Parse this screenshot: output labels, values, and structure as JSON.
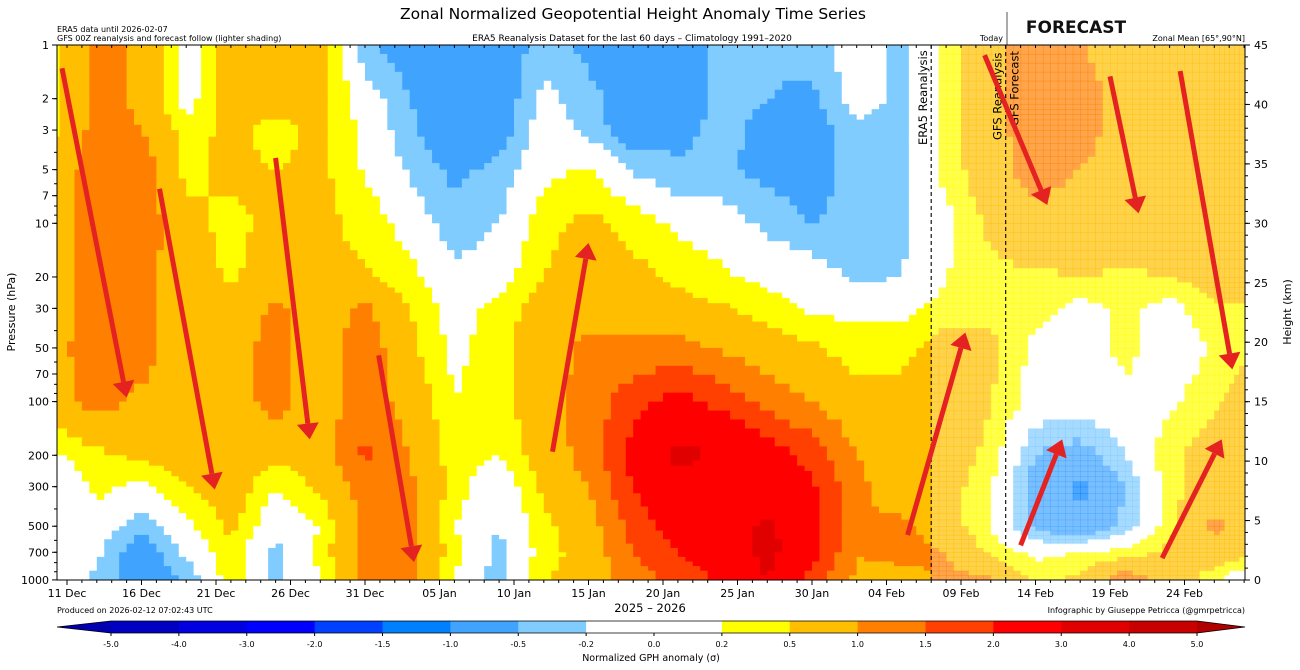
{
  "header": {
    "title": "Zonal Normalized Geopotential Height Anomaly Time Series",
    "note_line1": "ERA5 data until 2026-02-07",
    "note_line2": "GFS 00Z reanalysis and forecast follow (lighter shading)",
    "subtitle": "ERA5 Reanalysis Dataset for the last 60 days – Climatology 1991–2020",
    "today_label": "Today",
    "forecast_label": "FORECAST",
    "zonal_mean": "Zonal Mean [65°,90°N]"
  },
  "footer": {
    "produced": "Produced on 2026-02-12 07:02:43 UTC",
    "credit": "Infographic by Giuseppe Petricca (@gmrpetricca)"
  },
  "chart_data": {
    "type": "heatmap",
    "subtype": "filled-contour",
    "xlabel": "2025 – 2026",
    "ylabel": "Pressure (hPa)",
    "ylabel_right": "Height (km)",
    "yscale": "log",
    "ylim": [
      1000,
      1
    ],
    "ylim_right": [
      0,
      45
    ],
    "xlim": [
      "2025-12-10",
      "2026-02-28"
    ],
    "x_ticks": [
      "11 Dec",
      "16 Dec",
      "21 Dec",
      "26 Dec",
      "31 Dec",
      "05 Jan",
      "10 Jan",
      "15 Jan",
      "20 Jan",
      "25 Jan",
      "30 Jan",
      "04 Feb",
      "09 Feb",
      "14 Feb",
      "19 Feb",
      "24 Feb"
    ],
    "x_tick_dates": [
      "2025-12-11",
      "2025-12-16",
      "2025-12-21",
      "2025-12-26",
      "2025-12-31",
      "2026-01-05",
      "2026-01-10",
      "2026-01-15",
      "2026-01-20",
      "2026-01-25",
      "2026-01-30",
      "2026-02-04",
      "2026-02-09",
      "2026-02-14",
      "2026-02-19",
      "2026-02-24"
    ],
    "y_ticks": [
      1,
      2,
      3,
      5,
      7,
      10,
      20,
      30,
      50,
      70,
      100,
      200,
      300,
      500,
      700,
      1000
    ],
    "y_ticks_right": [
      0,
      5,
      10,
      15,
      20,
      25,
      30,
      35,
      40,
      45
    ],
    "vlines": [
      {
        "date": "2026-02-07",
        "label": "ERA5 Reanalysis",
        "style": "dashed"
      },
      {
        "date": "2026-02-12",
        "label": "GFS Reanalysis",
        "label2": "GFS Forecast",
        "style": "dashed"
      }
    ],
    "forecast_start": "2026-02-07",
    "colorbar": {
      "label": "Normalized GPH anomaly (σ)",
      "ticks": [
        "-5.0",
        "-4.0",
        "-3.0",
        "-2.0",
        "-1.5",
        "-1.0",
        "-0.5",
        "-0.2",
        "0.0",
        "0.2",
        "0.5",
        "1.0",
        "1.5",
        "2.0",
        "3.0",
        "4.0",
        "5.0"
      ],
      "bounds": [
        -5,
        -4,
        -3,
        -2,
        -1.5,
        -1,
        -0.5,
        -0.2,
        0.2,
        0.5,
        1,
        1.5,
        2,
        3,
        4,
        5
      ],
      "colors": [
        "#0000c0",
        "#0000e0",
        "#0000ff",
        "#0040ff",
        "#0080ff",
        "#40a4ff",
        "#80ccff",
        "#ffffff",
        "#ffff00",
        "#ffbf00",
        "#ff8000",
        "#ff4000",
        "#ff0000",
        "#e00000",
        "#c80000"
      ],
      "under_color": "#0000b0",
      "over_color": "#b00000"
    },
    "grid_dates": [
      "2025-12-10",
      "2025-12-13",
      "2025-12-16",
      "2025-12-19",
      "2025-12-22",
      "2025-12-25",
      "2025-12-28",
      "2025-12-31",
      "2026-01-03",
      "2026-01-06",
      "2026-01-09",
      "2026-01-12",
      "2026-01-15",
      "2026-01-18",
      "2026-01-21",
      "2026-01-24",
      "2026-01-27",
      "2026-01-30",
      "2026-02-02",
      "2026-02-05",
      "2026-02-08",
      "2026-02-11",
      "2026-02-14",
      "2026-02-17",
      "2026-02-20",
      "2026-02-23",
      "2026-02-26",
      "2026-02-28"
    ],
    "grid_levels": [
      1,
      2,
      3,
      5,
      10,
      20,
      30,
      50,
      100,
      200,
      300,
      500,
      700,
      1000
    ],
    "values": [
      [
        0.3,
        1.2,
        0.9,
        0,
        0.75,
        0.75,
        0.75,
        -0.4,
        -0.75,
        -0.9,
        -0.75,
        -0.35,
        -0.6,
        -0.75,
        -0.75,
        -0.4,
        -0.4,
        -0.35,
        0,
        -0.3,
        0.3,
        0.8,
        1.3,
        1.0,
        0.75,
        0.75,
        0.75,
        0.75
      ],
      [
        0.3,
        1.2,
        0.9,
        0,
        0.75,
        0.75,
        0.6,
        0,
        -0.5,
        -0.9,
        -0.8,
        -0.1,
        -0.4,
        -0.75,
        -0.75,
        -0.4,
        -0.5,
        -0.6,
        0,
        -0.3,
        0.3,
        0.8,
        1.3,
        1.3,
        0.75,
        0.75,
        0.75,
        0.8
      ],
      [
        0.4,
        1.2,
        1.0,
        0.35,
        0.6,
        0.35,
        0.6,
        0.1,
        -0.4,
        -0.9,
        -0.7,
        0,
        -0.3,
        -0.75,
        -0.6,
        -0.4,
        -0.6,
        -0.7,
        -0.3,
        -0.35,
        0.3,
        0.8,
        1.3,
        1.2,
        0.75,
        0.75,
        0.7,
        0.9
      ],
      [
        0.6,
        1.3,
        1.3,
        0.4,
        0.6,
        0.5,
        0.6,
        0.15,
        -0.25,
        -0.6,
        -0.4,
        0.1,
        0.25,
        -0.25,
        -0.45,
        -0.45,
        -0.6,
        -0.7,
        -0.35,
        -0.35,
        0.3,
        0.8,
        1.2,
        1.0,
        0.75,
        0.75,
        0.75,
        0.7
      ],
      [
        0.7,
        1.3,
        1.3,
        0.6,
        0.4,
        0.6,
        0.6,
        0.4,
        0.05,
        -0.4,
        -0.2,
        0.4,
        0.6,
        0.4,
        0.1,
        0,
        -0.3,
        -0.5,
        -0.4,
        -0.3,
        0.1,
        0.6,
        0.8,
        0.8,
        0.75,
        0.75,
        0.75,
        0.75
      ],
      [
        0.8,
        1.2,
        1.2,
        0.7,
        0.45,
        0.7,
        0.5,
        0.55,
        0.3,
        -0.1,
        0.05,
        0.5,
        0.7,
        0.6,
        0.45,
        0.25,
        0.1,
        0,
        -0.3,
        -0.2,
        0.2,
        0.4,
        0.45,
        0.5,
        0.45,
        0.5,
        0.7,
        0.75
      ],
      [
        0.8,
        1.2,
        1.2,
        0.7,
        0.6,
        1.1,
        0.7,
        1.1,
        0.5,
        0.05,
        0.3,
        0.7,
        0.8,
        0.7,
        0.6,
        0.55,
        0.35,
        0.15,
        0.1,
        0.1,
        0.3,
        0.4,
        0.35,
        0.05,
        0.3,
        0.05,
        0.45,
        0.45
      ],
      [
        0.8,
        1.3,
        1.2,
        0.7,
        0.75,
        1.2,
        0.7,
        1.3,
        0.6,
        0.1,
        0.4,
        0.8,
        1.1,
        1.1,
        1.2,
        0.9,
        0.7,
        0.55,
        0.35,
        0.35,
        0.7,
        0.6,
        0.1,
        0,
        0.3,
        0,
        0.2,
        0.4
      ],
      [
        0.75,
        1.2,
        0.9,
        0.75,
        0.75,
        1.2,
        0.7,
        1.3,
        0.8,
        0.2,
        0.35,
        0.8,
        1.2,
        1.8,
        2.2,
        1.8,
        1.3,
        1.0,
        0.6,
        0.7,
        0.8,
        0.5,
        0.05,
        0,
        0.1,
        0.1,
        0.45,
        0.7
      ],
      [
        0.15,
        0.4,
        0.6,
        0.75,
        0.8,
        0.6,
        0.75,
        1.6,
        1.0,
        0.3,
        0.2,
        0.7,
        1.2,
        2.2,
        3.3,
        2.8,
        2.3,
        1.8,
        1.0,
        0.75,
        0.75,
        0.4,
        -0.5,
        -0.7,
        -0.2,
        0.4,
        0.75,
        0.75
      ],
      [
        -0.2,
        0.3,
        0.1,
        0.5,
        0.75,
        0.2,
        0.6,
        1.2,
        1.1,
        0.35,
        -0.1,
        0.6,
        1.0,
        2.0,
        2.6,
        2.5,
        2.5,
        2.1,
        1.1,
        0.75,
        0.7,
        0.2,
        -0.7,
        -1.1,
        -0.5,
        0.35,
        0.75,
        0.9
      ],
      [
        -0.1,
        0,
        -0.4,
        0.1,
        0.6,
        -0.1,
        0.2,
        1.1,
        1.1,
        0.2,
        -0.2,
        0.4,
        0.75,
        1.7,
        2.3,
        2.5,
        3.2,
        2.3,
        1.0,
        1.1,
        0.7,
        0.2,
        -0.6,
        -0.9,
        -0.4,
        0.4,
        1.1,
        0.8
      ],
      [
        0.1,
        -0.1,
        -0.8,
        -0.1,
        0.4,
        -0.3,
        0.3,
        1.2,
        1.2,
        0.3,
        -0.3,
        0.35,
        0.7,
        1.5,
        2.0,
        2.4,
        3.3,
        2.2,
        1.0,
        1.2,
        1.0,
        0.4,
        0.1,
        0.2,
        0.3,
        0.6,
        0.8,
        0.7
      ],
      [
        0.2,
        -0.3,
        -0.8,
        -0.5,
        0.4,
        -0.3,
        0.2,
        1.1,
        1.1,
        0.2,
        -0.4,
        0.5,
        0.6,
        1.3,
        1.6,
        2.1,
        3.0,
        1.8,
        0.9,
        0.75,
        1.1,
        1.1,
        0.4,
        0.6,
        1.3,
        0.75,
        0.3,
        -0.2
      ]
    ],
    "annotations_arrows": [
      {
        "from": [
          "2025-12-10T16",
          1.35
        ],
        "to": [
          "2025-12-15",
          95
        ]
      },
      {
        "from": [
          "2025-12-17T05",
          6.4
        ],
        "to": [
          "2025-12-20T22",
          311
        ]
      },
      {
        "from": [
          "2025-12-25",
          4.3
        ],
        "to": [
          "2025-12-27T07",
          163
        ]
      },
      {
        "from": [
          "2025-12-31T22",
          55
        ],
        "to": [
          "2026-01-03T07",
          795
        ]
      },
      {
        "from": [
          "2026-01-12T14",
          191
        ],
        "to": [
          "2026-01-15",
          12.9
        ]
      },
      {
        "from": [
          "2026-02-05T10",
          560
        ],
        "to": [
          "2026-02-09T07",
          41
        ]
      },
      {
        "from": [
          "2026-02-10T14",
          1.14
        ],
        "to": [
          "2026-02-14T19",
          7.9
        ]
      },
      {
        "from": [
          "2026-02-19",
          1.5
        ],
        "to": [
          "2026-02-20T22",
          8.8
        ]
      },
      {
        "from": [
          "2026-02-23T17",
          1.4
        ],
        "to": [
          "2026-02-27T05",
          66
        ]
      },
      {
        "from": [
          "2026-02-13",
          640
        ],
        "to": [
          "2026-02-15T19",
          163
        ]
      },
      {
        "from": [
          "2026-02-22T12",
          755
        ],
        "to": [
          "2026-02-26T12",
          163
        ]
      }
    ],
    "arrow_color": "#e52222"
  }
}
